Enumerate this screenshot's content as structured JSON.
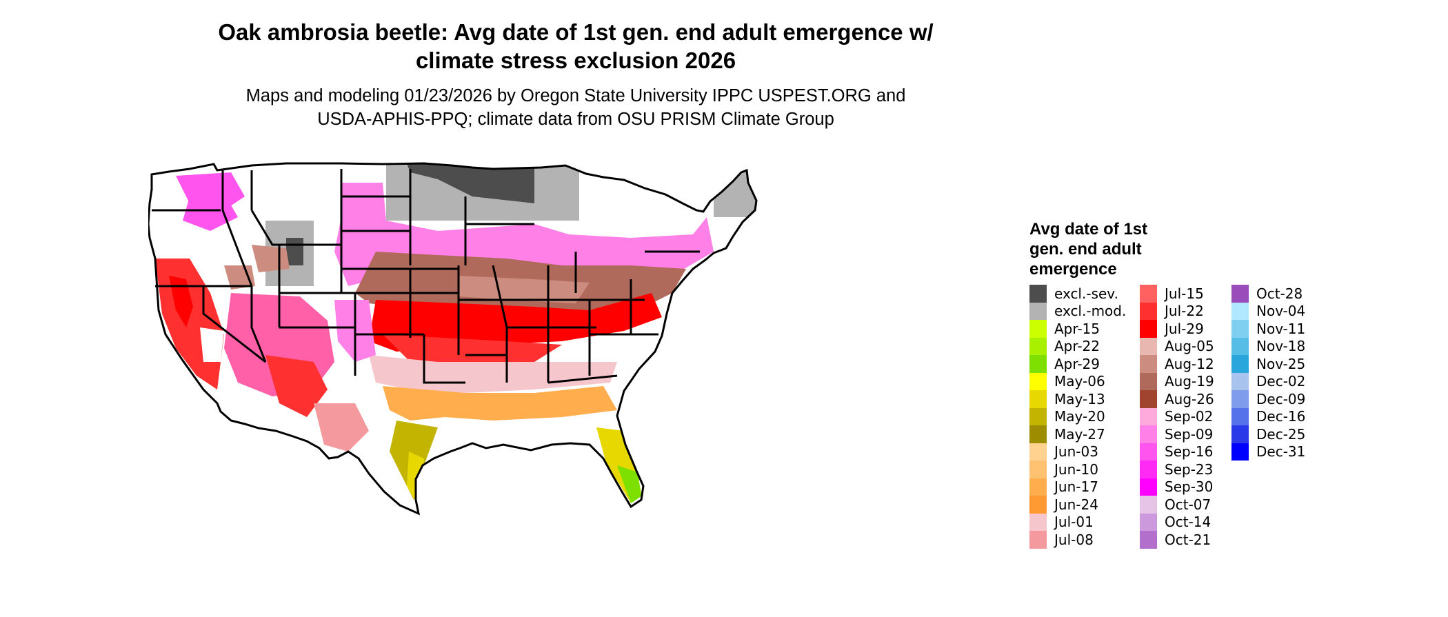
{
  "title": {
    "line1": "Oak ambrosia beetle: Avg date of 1st gen. end adult emergence w/",
    "line2": "climate stress exclusion 2026"
  },
  "subtitle": {
    "line1": "Maps and modeling 01/23/2026 by Oregon State University IPPC USPEST.ORG and",
    "line2": "USDA-APHIS-PPQ; climate data from OSU PRISM Climate Group"
  },
  "legend": {
    "title_lines": [
      "Avg date of 1st",
      "gen. end adult",
      "emergence"
    ],
    "columns": [
      [
        {
          "label": "excl.-sev.",
          "color": "#4d4d4d"
        },
        {
          "label": "excl.-mod.",
          "color": "#b3b3b3"
        },
        {
          "label": "Apr-15",
          "color": "#ccff00"
        },
        {
          "label": "Apr-22",
          "color": "#a8f000"
        },
        {
          "label": "Apr-29",
          "color": "#7ee000"
        },
        {
          "label": "May-06",
          "color": "#ffff00"
        },
        {
          "label": "May-13",
          "color": "#e6d800"
        },
        {
          "label": "May-20",
          "color": "#c2b400"
        },
        {
          "label": "May-27",
          "color": "#9e8c00"
        },
        {
          "label": "Jun-03",
          "color": "#ffd38f"
        },
        {
          "label": "Jun-10",
          "color": "#ffc270"
        },
        {
          "label": "Jun-17",
          "color": "#ffad4d"
        },
        {
          "label": "Jun-24",
          "color": "#ff9a33"
        },
        {
          "label": "Jul-01",
          "color": "#f5c6cc"
        },
        {
          "label": "Jul-08",
          "color": "#f49a9e"
        }
      ],
      [
        {
          "label": "Jul-15",
          "color": "#ff6060"
        },
        {
          "label": "Jul-22",
          "color": "#ff3030"
        },
        {
          "label": "Jul-29",
          "color": "#ff0000"
        },
        {
          "label": "Aug-05",
          "color": "#e8b8b0"
        },
        {
          "label": "Aug-12",
          "color": "#cc8c80"
        },
        {
          "label": "Aug-19",
          "color": "#b06a5c"
        },
        {
          "label": "Aug-26",
          "color": "#a0432f"
        },
        {
          "label": "Sep-02",
          "color": "#ffaadd"
        },
        {
          "label": "Sep-09",
          "color": "#ff80e6"
        },
        {
          "label": "Sep-16",
          "color": "#ff55ee"
        },
        {
          "label": "Sep-23",
          "color": "#ff2bf5"
        },
        {
          "label": "Sep-30",
          "color": "#ff00ff"
        },
        {
          "label": "Oct-07",
          "color": "#e5c4e8"
        },
        {
          "label": "Oct-14",
          "color": "#cc99dd"
        },
        {
          "label": "Oct-21",
          "color": "#b36fcc"
        }
      ],
      [
        {
          "label": "Oct-28",
          "color": "#9a4cbb"
        },
        {
          "label": "Nov-04",
          "color": "#b0e8ff"
        },
        {
          "label": "Nov-11",
          "color": "#7fd0f0"
        },
        {
          "label": "Nov-18",
          "color": "#55bde6"
        },
        {
          "label": "Nov-25",
          "color": "#2aa6dd"
        },
        {
          "label": "Dec-02",
          "color": "#a8c4ee"
        },
        {
          "label": "Dec-09",
          "color": "#7f9bec"
        },
        {
          "label": "Dec-16",
          "color": "#5572ea"
        },
        {
          "label": "Dec-25",
          "color": "#2a3ae8"
        },
        {
          "label": "Dec-31",
          "color": "#0000ff"
        }
      ]
    ]
  }
}
